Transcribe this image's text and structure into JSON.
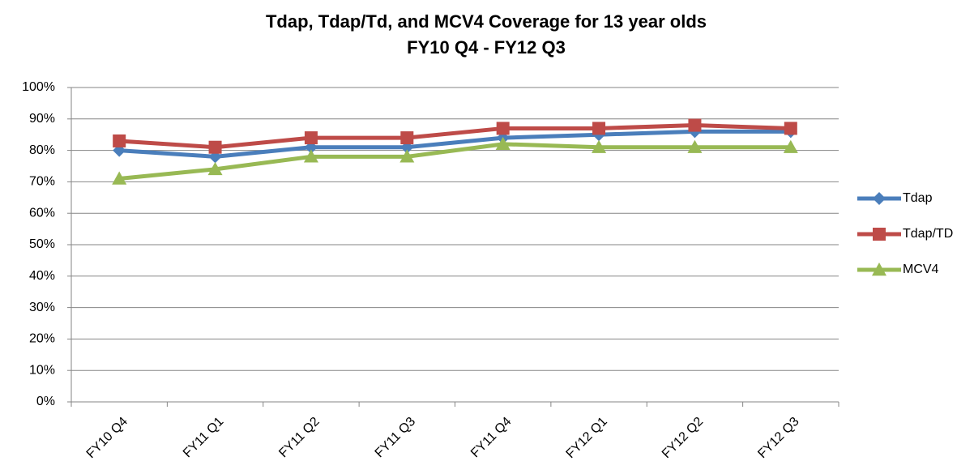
{
  "chart_data": {
    "type": "line",
    "title": [
      "Tdap, Tdap/Td, and MCV4 Coverage for 13 year olds",
      "FY10 Q4 - FY12 Q3"
    ],
    "categories": [
      "FY10 Q4",
      "FY11 Q1",
      "FY11 Q2",
      "FY11 Q3",
      "FY11 Q4",
      "FY12 Q1",
      "FY12 Q2",
      "FY12 Q3"
    ],
    "series": [
      {
        "name": "Tdap",
        "color": "#4a7ebb",
        "marker": "diamond",
        "values": [
          80,
          78,
          81,
          81,
          84,
          85,
          86,
          86
        ]
      },
      {
        "name": "Tdap/TD",
        "color": "#be4b48",
        "marker": "square",
        "values": [
          83,
          81,
          84,
          84,
          87,
          87,
          88,
          87
        ]
      },
      {
        "name": "MCV4",
        "color": "#98b954",
        "marker": "triangle",
        "values": [
          71,
          74,
          78,
          78,
          82,
          81,
          81,
          81
        ]
      }
    ],
    "ylim": [
      0,
      100
    ],
    "yticks": [
      {
        "value": 0,
        "label": "0%"
      },
      {
        "value": 10,
        "label": "10%"
      },
      {
        "value": 20,
        "label": "20%"
      },
      {
        "value": 30,
        "label": "30%"
      },
      {
        "value": 40,
        "label": "40%"
      },
      {
        "value": 50,
        "label": "50%"
      },
      {
        "value": 60,
        "label": "60%"
      },
      {
        "value": 70,
        "label": "70%"
      },
      {
        "value": 80,
        "label": "80%"
      },
      {
        "value": 90,
        "label": "90%"
      },
      {
        "value": 100,
        "label": "100%"
      }
    ],
    "grid": true,
    "legend": "right"
  }
}
